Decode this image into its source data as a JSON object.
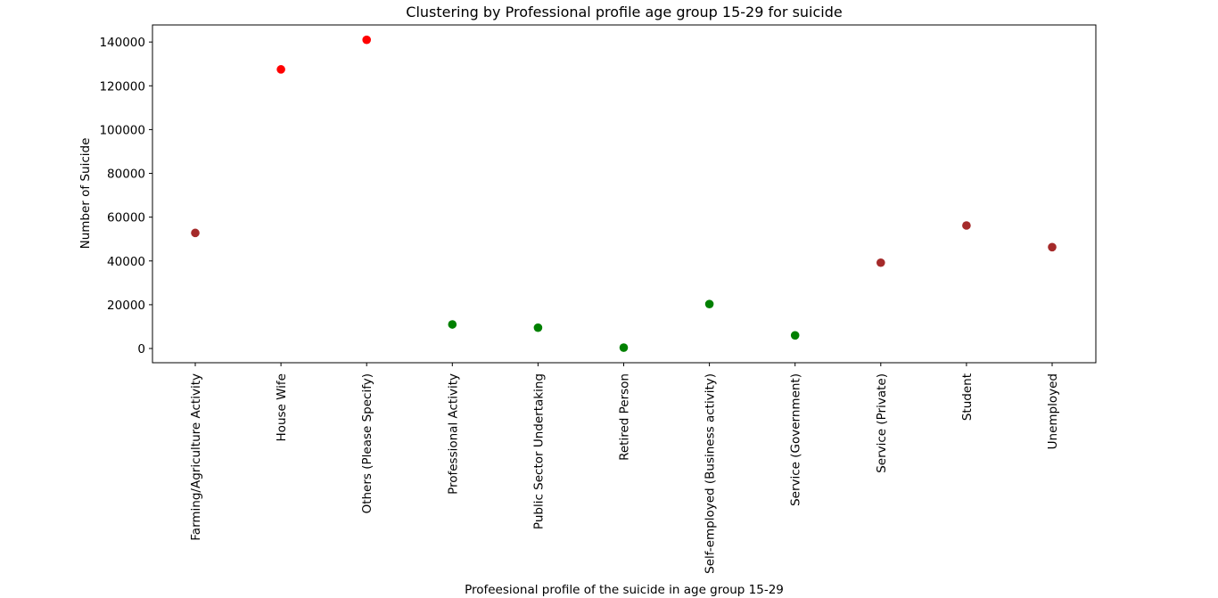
{
  "chart_data": {
    "type": "scatter",
    "title": "Clustering by Professional profile age group 15-29 for suicide",
    "xlabel": "Profeesional profile of the suicide in age group 15-29",
    "ylabel": "Number of Suicide",
    "ylim": [
      -6500,
      147800
    ],
    "yticks": [
      0,
      20000,
      40000,
      60000,
      80000,
      100000,
      120000,
      140000
    ],
    "grid": false,
    "legend": "none",
    "categories": [
      "Farming/Agriculture Activity",
      "House Wife",
      "Others (Please Specify)",
      "Professional Activity",
      "Public Sector Undertaking",
      "Retired Person",
      "Self-employed (Business activity)",
      "Service (Government)",
      "Service (Private)",
      "Student",
      "Unemployed"
    ],
    "values": [
      52800,
      127500,
      141000,
      11000,
      9500,
      400,
      20300,
      6000,
      39200,
      56200,
      46300
    ],
    "cluster": [
      1,
      0,
      0,
      2,
      2,
      2,
      2,
      2,
      1,
      1,
      1
    ],
    "cluster_colors": [
      "#ff0000",
      "#a52a2a",
      "#008000"
    ]
  }
}
